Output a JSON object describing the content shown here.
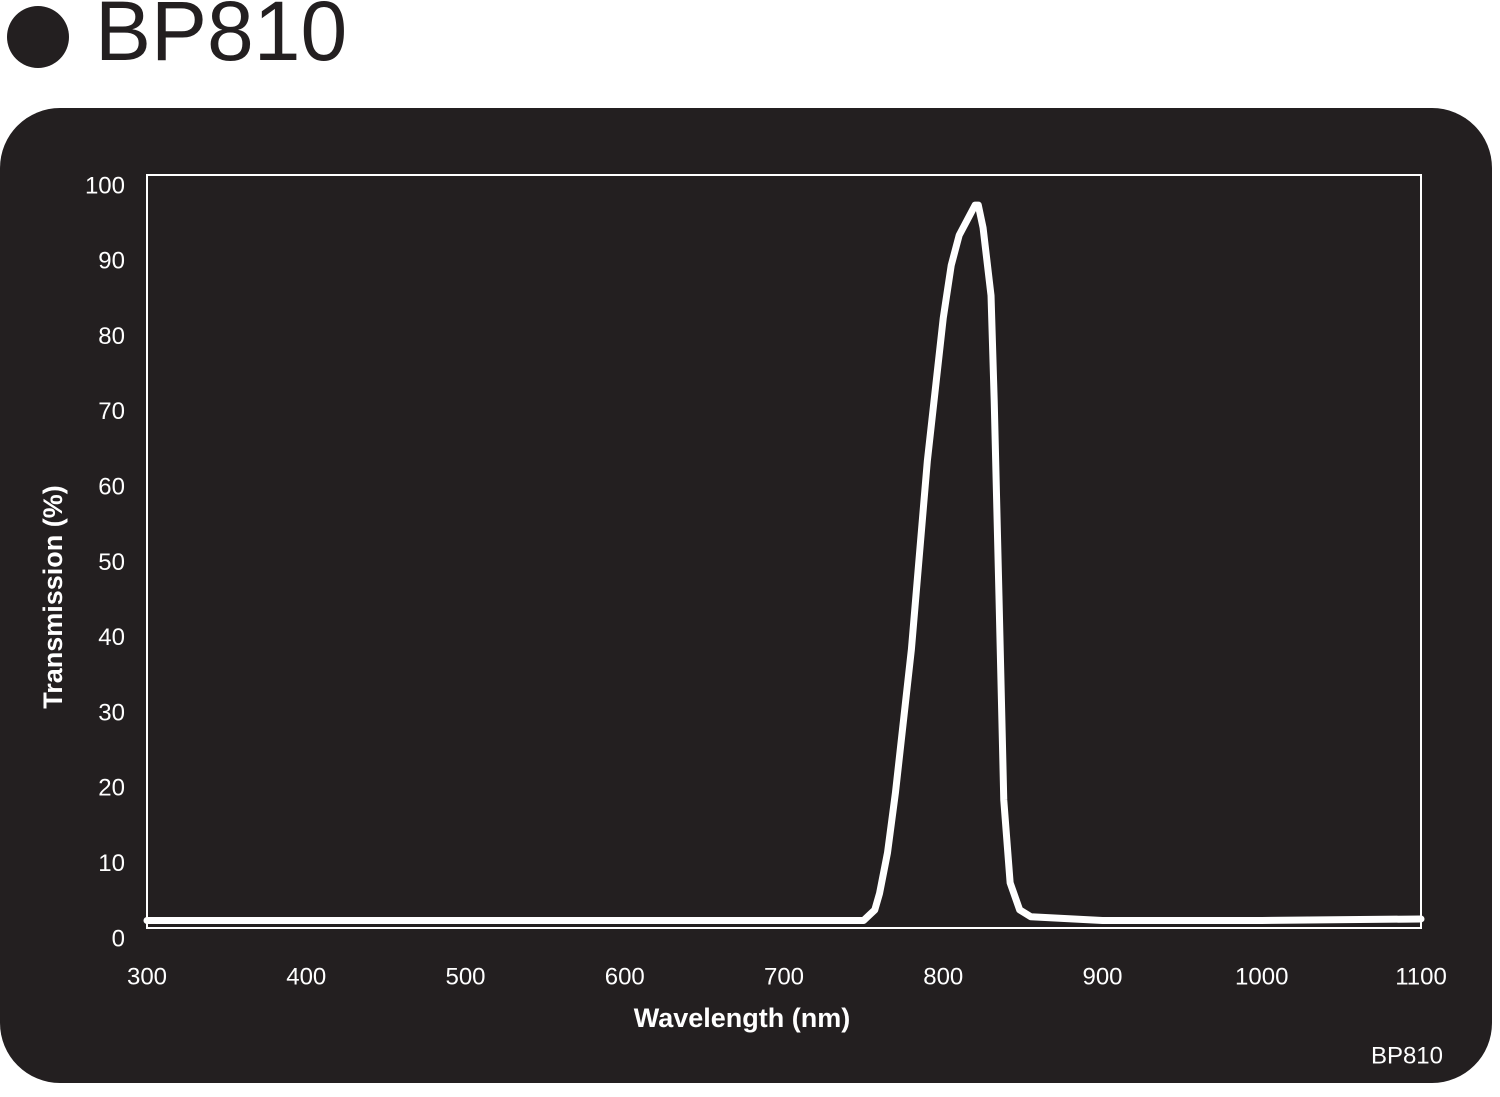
{
  "chart_data": {
    "type": "line",
    "title": "BP810",
    "note": "BP810",
    "xlabel": "Wavelength (nm)",
    "ylabel": "Transmission (%)",
    "x": [
      300,
      750,
      757,
      760,
      765,
      770,
      780,
      790,
      800,
      805,
      810,
      815,
      820,
      822,
      825,
      830,
      832,
      835,
      838,
      842,
      848,
      855,
      900,
      1000,
      1100
    ],
    "series": [
      {
        "name": "BP810",
        "color": "#ffffff",
        "values": [
          1,
          1,
          2.4,
          4.6,
          10,
          18,
          37,
          62,
          81,
          88,
          92,
          94,
          96,
          96,
          93,
          84,
          70,
          44,
          17,
          6,
          2.4,
          1.5,
          1,
          1,
          1.2
        ]
      }
    ],
    "xlim": [
      300,
      1100
    ],
    "xticks": [
      300,
      400,
      500,
      600,
      700,
      800,
      900,
      1000,
      1100
    ],
    "ylim": [
      0,
      100
    ],
    "yticks": [
      0,
      10,
      20,
      30,
      40,
      50,
      60,
      70,
      80,
      90,
      100
    ]
  }
}
